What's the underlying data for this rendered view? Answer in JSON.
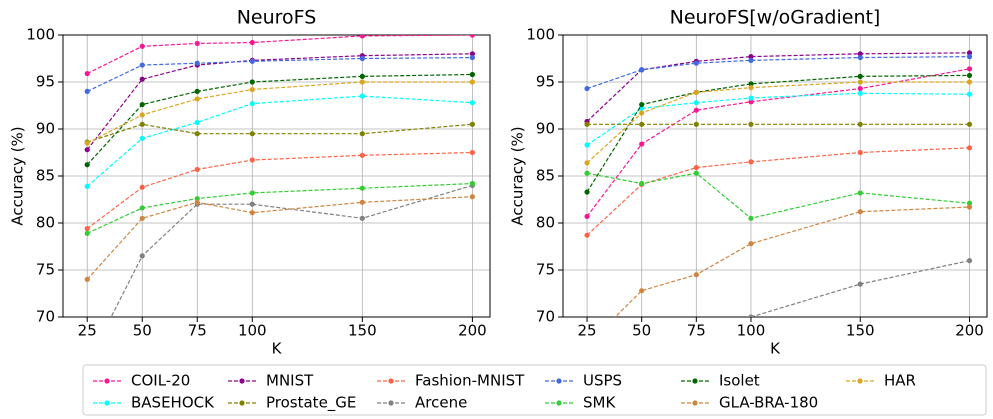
{
  "chart_data": [
    {
      "type": "line",
      "title": "NeuroFS",
      "xlabel": "K",
      "ylabel": "Accuracy (%)",
      "x": [
        25,
        50,
        75,
        100,
        150,
        200
      ],
      "xlim": [
        14,
        208
      ],
      "xticks": [
        25,
        50,
        75,
        100,
        150,
        200
      ],
      "ylim": [
        70,
        100
      ],
      "yticks": [
        70,
        75,
        80,
        85,
        90,
        95,
        100
      ],
      "grid": true,
      "linestyle": "dashed",
      "series": [
        {
          "name": "COIL-20",
          "color": "#ff1493",
          "values": [
            95.9,
            98.8,
            99.1,
            99.2,
            99.9,
            100.0
          ]
        },
        {
          "name": "BASEHOCK",
          "color": "#00ffff",
          "values": [
            83.9,
            89.0,
            90.7,
            92.7,
            93.5,
            92.8
          ]
        },
        {
          "name": "MNIST",
          "color": "#8b008b",
          "values": [
            87.8,
            95.3,
            96.8,
            97.3,
            97.8,
            98.0
          ]
        },
        {
          "name": "Prostate_GE",
          "color": "#808000",
          "values": [
            88.6,
            90.5,
            89.5,
            89.5,
            89.5,
            90.5
          ]
        },
        {
          "name": "Fashion-MNIST",
          "color": "#ff6347",
          "values": [
            79.4,
            83.8,
            85.7,
            86.7,
            87.2,
            87.5
          ]
        },
        {
          "name": "Arcene",
          "color": "#808080",
          "values": [
            65,
            76.5,
            82.0,
            82.0,
            80.5,
            84.0
          ]
        },
        {
          "name": "USPS",
          "color": "#4169e1",
          "values": [
            94.0,
            96.8,
            97.0,
            97.2,
            97.5,
            97.6
          ]
        },
        {
          "name": "SMK",
          "color": "#32cd32",
          "values": [
            78.9,
            81.6,
            82.6,
            83.2,
            83.7,
            84.2
          ]
        },
        {
          "name": "Isolet",
          "color": "#006400",
          "values": [
            86.2,
            92.6,
            94.0,
            95.0,
            95.6,
            95.8
          ]
        },
        {
          "name": "GLA-BRA-180",
          "color": "#cd853f",
          "values": [
            74.0,
            80.5,
            82.2,
            81.1,
            82.2,
            82.8
          ]
        },
        {
          "name": "HAR",
          "color": "#daa520",
          "values": [
            88.5,
            91.5,
            93.2,
            94.2,
            95.0,
            95.0
          ]
        }
      ]
    },
    {
      "type": "line",
      "title": "NeuroFS[w/oGradient]",
      "xlabel": "K",
      "ylabel": "Accuracy (%)",
      "x": [
        25,
        50,
        75,
        100,
        150,
        200
      ],
      "xlim": [
        14,
        208
      ],
      "xticks": [
        25,
        50,
        75,
        100,
        150,
        200
      ],
      "ylim": [
        70,
        100
      ],
      "yticks": [
        70,
        75,
        80,
        85,
        90,
        95,
        100
      ],
      "grid": true,
      "linestyle": "dashed",
      "series": [
        {
          "name": "COIL-20",
          "color": "#ff1493",
          "values": [
            80.7,
            88.4,
            92.0,
            92.9,
            94.3,
            96.4
          ]
        },
        {
          "name": "BASEHOCK",
          "color": "#00ffff",
          "values": [
            88.3,
            92.2,
            92.8,
            93.3,
            93.8,
            93.7
          ]
        },
        {
          "name": "MNIST",
          "color": "#8b008b",
          "values": [
            90.8,
            96.3,
            97.2,
            97.7,
            98.0,
            98.1
          ]
        },
        {
          "name": "Prostate_GE",
          "color": "#808000",
          "values": [
            90.5,
            90.5,
            90.5,
            90.5,
            90.5,
            90.5
          ]
        },
        {
          "name": "Fashion-MNIST",
          "color": "#ff6347",
          "values": [
            78.7,
            84.1,
            85.9,
            86.5,
            87.5,
            88.0
          ]
        },
        {
          "name": "Arcene",
          "color": "#808080",
          "values": [
            null,
            null,
            null,
            70.0,
            73.5,
            76.0
          ]
        },
        {
          "name": "USPS",
          "color": "#4169e1",
          "values": [
            94.3,
            96.3,
            97.0,
            97.3,
            97.6,
            97.7
          ]
        },
        {
          "name": "SMK",
          "color": "#32cd32",
          "values": [
            85.3,
            84.2,
            85.3,
            80.5,
            83.2,
            82.1
          ]
        },
        {
          "name": "Isolet",
          "color": "#006400",
          "values": [
            83.3,
            92.6,
            93.9,
            94.8,
            95.6,
            95.7
          ]
        },
        {
          "name": "GLA-BRA-180",
          "color": "#cd853f",
          "values": [
            67,
            72.8,
            74.5,
            77.8,
            81.2,
            81.7
          ]
        },
        {
          "name": "HAR",
          "color": "#daa520",
          "values": [
            86.4,
            91.7,
            93.9,
            94.4,
            95.0,
            95.0
          ]
        }
      ]
    }
  ]
}
